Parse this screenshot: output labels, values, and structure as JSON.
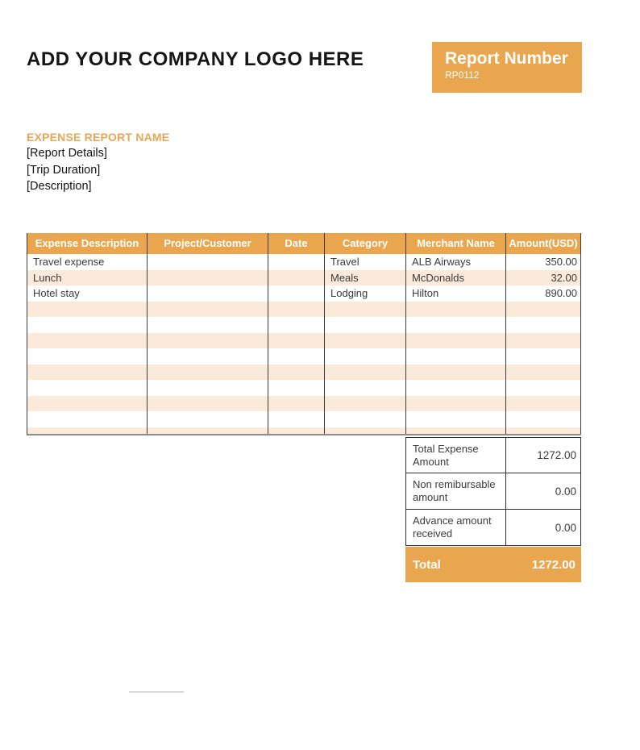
{
  "page": {
    "logo_text": "ADD YOUR COMPANY LOGO HERE",
    "report_number_label": "Report Number",
    "report_number_value": "RP0112"
  },
  "report_info": {
    "title": "EXPENSE REPORT NAME",
    "lines": [
      "[Report Details]",
      "[Trip Duration]",
      "[Description]"
    ]
  },
  "expense_table": {
    "headers": [
      "Expense Description",
      "Project/Customer",
      "Date",
      "Category",
      "Merchant Name",
      "Amount(USD)"
    ],
    "rows": [
      {
        "expense_description": "Travel expense",
        "project_customer": "",
        "date": "",
        "category": "Travel",
        "merchant_name": "ALB Airways",
        "amount": "350.00"
      },
      {
        "expense_description": "Lunch",
        "project_customer": "",
        "date": "",
        "category": "Meals",
        "merchant_name": "McDonalds",
        "amount": "32.00"
      },
      {
        "expense_description": "Hotel stay",
        "project_customer": "",
        "date": "",
        "category": "Lodging",
        "merchant_name": "Hilton",
        "amount": "890.00"
      }
    ],
    "empty_row_count": 9
  },
  "summary": {
    "rows": [
      {
        "label": "Total Expense Amount",
        "value": "1272.00"
      },
      {
        "label": "Non remibursable amount",
        "value": "0.00"
      },
      {
        "label": "Advance amount received",
        "value": "0.00"
      }
    ],
    "total_label": "Total",
    "total_value": "1272.00"
  },
  "colors": {
    "accent_orange": "#EAA64E",
    "accent_text_orange": "#E9A654",
    "row_stripe": "#FBE9D9"
  }
}
